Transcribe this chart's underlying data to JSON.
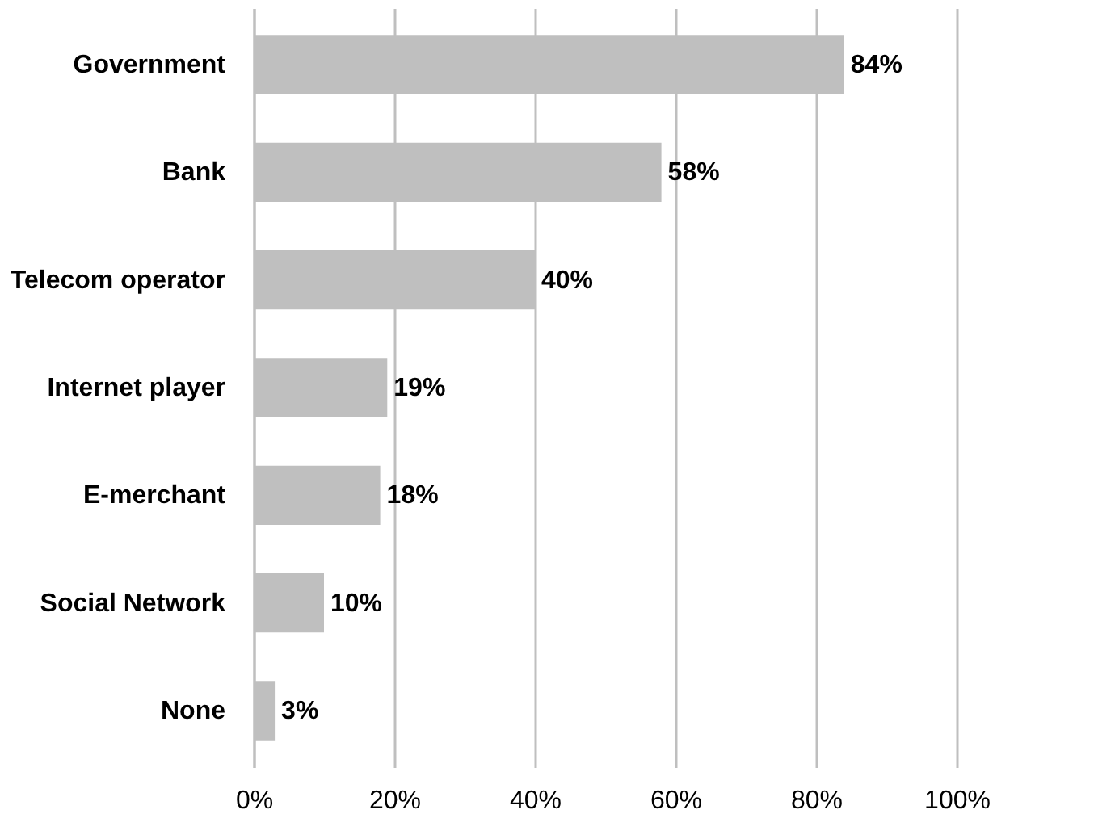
{
  "chart_data": {
    "type": "bar",
    "orientation": "horizontal",
    "categories": [
      "Government",
      "Bank",
      "Telecom operator",
      "Internet player",
      "E-merchant",
      "Social Network",
      "None"
    ],
    "values": [
      84,
      58,
      40,
      19,
      18,
      10,
      3
    ],
    "value_labels": [
      "84%",
      "58%",
      "40%",
      "19%",
      "18%",
      "10%",
      "3%"
    ],
    "color": "#bfbfbf",
    "xlim": [
      0,
      100
    ],
    "xticks": [
      {
        "value": 0,
        "label": "0%"
      },
      {
        "value": 20,
        "label": "20%"
      },
      {
        "value": 40,
        "label": "40%"
      },
      {
        "value": 60,
        "label": "60%"
      },
      {
        "value": 80,
        "label": "80%"
      },
      {
        "value": 100,
        "label": "100%"
      }
    ],
    "grid": "x"
  }
}
